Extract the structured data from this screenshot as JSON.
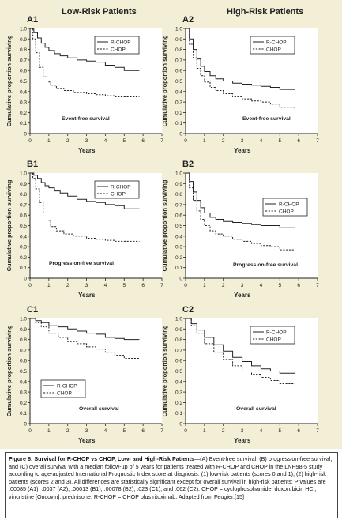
{
  "column_headers": [
    "Low-Risk Patients",
    "High-Risk Patients"
  ],
  "caption": {
    "title": "Figure 6: Survival for R-CHOP vs CHOP, Low- and High-Risk Patients",
    "text": "—(A) Event-free survival, (B) progression-free survival, and (C) overall survival with a median follow-up of 5 years for patients treated with R-CHOP and CHOP in the LNH98-5 study according to age-adjusted International Prognostic Index score at diagnosis: (1) low-risk patients (scores 0 and 1); (2) high-risk patients (scores 2 and 3). All differences are statistically significant except for overall survival in high-risk patients: P values are .00085 (A1), .0037 (A2), .00013 (B1), .00078 (B2), .023 (C1), and .062 (C2). CHOP = cyclophosphamide, doxorubicin HCl, vincristine [Oncovin], prednisone; R-CHOP = CHOP plus rituximab. Adapted from Feugier.[15]"
  },
  "colors": {
    "panel_bg": "#f2efd6",
    "plot_bg": "#ffffff",
    "line": "#222222"
  },
  "chart_data": [
    {
      "id": "A1",
      "type": "line",
      "panel_label": "A1",
      "annotation": "Event-free survival",
      "xlabel": "Years",
      "ylabel": "Cumulative proportion surviving",
      "xlim": [
        0,
        7
      ],
      "ylim": [
        0,
        1
      ],
      "xticks": [
        "0",
        "1",
        "2",
        "3",
        "4",
        "5",
        "6",
        "7"
      ],
      "yticks": [
        "0",
        "0.1",
        "0.2",
        "0.3",
        "0.4",
        "0.5",
        "0.6",
        "0.7",
        "0.8",
        "0.9",
        "1.0"
      ],
      "legend_position": "top-right",
      "series": [
        {
          "name": "R-CHOP",
          "style": "solid",
          "x": [
            0,
            0.2,
            0.4,
            0.6,
            0.8,
            1,
            1.3,
            1.6,
            2,
            2.5,
            3,
            3.5,
            4,
            4.5,
            5,
            5.8
          ],
          "y": [
            1,
            0.96,
            0.91,
            0.86,
            0.82,
            0.79,
            0.76,
            0.74,
            0.72,
            0.7,
            0.69,
            0.68,
            0.65,
            0.63,
            0.6,
            0.6
          ]
        },
        {
          "name": "CHOP",
          "style": "dashed",
          "x": [
            0,
            0.15,
            0.3,
            0.5,
            0.7,
            0.9,
            1.1,
            1.4,
            1.8,
            2.3,
            3,
            3.5,
            4,
            4.5,
            5,
            5.8
          ],
          "y": [
            1,
            0.9,
            0.77,
            0.63,
            0.54,
            0.49,
            0.46,
            0.43,
            0.41,
            0.39,
            0.38,
            0.37,
            0.36,
            0.35,
            0.35,
            0.35
          ]
        }
      ]
    },
    {
      "id": "A2",
      "type": "line",
      "panel_label": "A2",
      "annotation": "Event-free survival",
      "xlabel": "Years",
      "ylabel": "Cumulative proportion surviving",
      "xlim": [
        0,
        7
      ],
      "ylim": [
        0,
        1
      ],
      "xticks": [
        "0",
        "1",
        "2",
        "3",
        "4",
        "5",
        "6",
        "7"
      ],
      "yticks": [
        "0",
        "0.1",
        "0.2",
        "0.3",
        "0.4",
        "0.5",
        "0.6",
        "0.7",
        "0.8",
        "0.9",
        "1.0"
      ],
      "legend_position": "top-right",
      "series": [
        {
          "name": "R-CHOP",
          "style": "solid",
          "x": [
            0,
            0.2,
            0.4,
            0.6,
            0.8,
            1,
            1.3,
            1.6,
            2,
            2.5,
            3,
            3.5,
            4,
            4.5,
            5,
            5.8
          ],
          "y": [
            1,
            0.9,
            0.8,
            0.71,
            0.64,
            0.59,
            0.55,
            0.52,
            0.5,
            0.48,
            0.47,
            0.46,
            0.45,
            0.44,
            0.42,
            0.42
          ]
        },
        {
          "name": "CHOP",
          "style": "dashed",
          "x": [
            0,
            0.2,
            0.4,
            0.6,
            0.8,
            1,
            1.3,
            1.6,
            2,
            2.5,
            3,
            3.5,
            4,
            4.5,
            5,
            5.8
          ],
          "y": [
            1,
            0.85,
            0.72,
            0.62,
            0.55,
            0.49,
            0.44,
            0.41,
            0.38,
            0.35,
            0.33,
            0.31,
            0.3,
            0.28,
            0.25,
            0.25
          ]
        }
      ]
    },
    {
      "id": "B1",
      "type": "line",
      "panel_label": "B1",
      "annotation": "Progression-free survival",
      "xlabel": "Years",
      "ylabel": "Cumulative proportion surviving",
      "xlim": [
        0,
        7
      ],
      "ylim": [
        0,
        1
      ],
      "xticks": [
        "0",
        "1",
        "2",
        "3",
        "4",
        "5",
        "6",
        "7"
      ],
      "yticks": [
        "0",
        "0.1",
        "0.2",
        "0.3",
        "0.4",
        "0.5",
        "0.6",
        "0.7",
        "0.8",
        "0.9",
        "1.0"
      ],
      "legend_position": "top-right",
      "series": [
        {
          "name": "R-CHOP",
          "style": "solid",
          "x": [
            0,
            0.2,
            0.4,
            0.6,
            0.8,
            1,
            1.3,
            1.6,
            2,
            2.5,
            3,
            3.5,
            4,
            4.5,
            5,
            5.8
          ],
          "y": [
            1,
            0.98,
            0.95,
            0.91,
            0.88,
            0.86,
            0.83,
            0.81,
            0.78,
            0.75,
            0.73,
            0.72,
            0.7,
            0.69,
            0.66,
            0.66
          ]
        },
        {
          "name": "CHOP",
          "style": "dashed",
          "x": [
            0,
            0.15,
            0.3,
            0.5,
            0.7,
            0.9,
            1.1,
            1.4,
            1.8,
            2.3,
            3,
            3.5,
            4,
            4.5,
            5,
            5.8
          ],
          "y": [
            1,
            0.95,
            0.85,
            0.72,
            0.62,
            0.55,
            0.49,
            0.45,
            0.42,
            0.4,
            0.38,
            0.37,
            0.36,
            0.35,
            0.35,
            0.35
          ]
        }
      ]
    },
    {
      "id": "B2",
      "type": "line",
      "panel_label": "B2",
      "annotation": "Progression-free survival",
      "xlabel": "Years",
      "ylabel": "Cumulative proportion surviving",
      "xlim": [
        0,
        7
      ],
      "ylim": [
        0,
        1
      ],
      "xticks": [
        "0",
        "1",
        "2",
        "3",
        "4",
        "5",
        "6",
        "7"
      ],
      "yticks": [
        "0",
        "0.1",
        "0.2",
        "0.3",
        "0.4",
        "0.5",
        "0.6",
        "0.7",
        "0.8",
        "0.9",
        "1.0"
      ],
      "legend_position": "right",
      "series": [
        {
          "name": "R-CHOP",
          "style": "solid",
          "x": [
            0,
            0.2,
            0.4,
            0.6,
            0.8,
            1,
            1.3,
            1.6,
            2,
            2.5,
            3,
            3.5,
            4,
            4.5,
            5,
            5.8
          ],
          "y": [
            1,
            0.92,
            0.82,
            0.74,
            0.67,
            0.62,
            0.58,
            0.56,
            0.54,
            0.53,
            0.52,
            0.51,
            0.5,
            0.5,
            0.48,
            0.48
          ]
        },
        {
          "name": "CHOP",
          "style": "dashed",
          "x": [
            0,
            0.2,
            0.4,
            0.6,
            0.8,
            1,
            1.3,
            1.6,
            2,
            2.5,
            3,
            3.5,
            4,
            4.5,
            5,
            5.8
          ],
          "y": [
            1,
            0.86,
            0.74,
            0.64,
            0.56,
            0.5,
            0.45,
            0.42,
            0.4,
            0.37,
            0.35,
            0.33,
            0.31,
            0.3,
            0.27,
            0.27
          ]
        }
      ]
    },
    {
      "id": "C1",
      "type": "line",
      "panel_label": "C1",
      "annotation": "Overall survival",
      "xlabel": "Years",
      "ylabel": "Cumulative proportion surviving",
      "xlim": [
        0,
        7
      ],
      "ylim": [
        0,
        1
      ],
      "xticks": [
        "0",
        "1",
        "2",
        "3",
        "4",
        "5",
        "6",
        "7"
      ],
      "yticks": [
        "0",
        "0.1",
        "0.2",
        "0.3",
        "0.4",
        "0.5",
        "0.6",
        "0.7",
        "0.8",
        "0.9",
        "1.0"
      ],
      "legend_position": "bottom-left",
      "series": [
        {
          "name": "R-CHOP",
          "style": "solid",
          "x": [
            0,
            0.3,
            0.6,
            1,
            1.5,
            2,
            2.5,
            3,
            3.5,
            4,
            4.5,
            5,
            5.8
          ],
          "y": [
            1,
            0.98,
            0.96,
            0.93,
            0.92,
            0.9,
            0.88,
            0.86,
            0.85,
            0.82,
            0.81,
            0.8,
            0.8
          ]
        },
        {
          "name": "CHOP",
          "style": "dashed",
          "x": [
            0,
            0.3,
            0.6,
            1,
            1.5,
            2,
            2.5,
            3,
            3.5,
            4,
            4.5,
            5,
            5.8
          ],
          "y": [
            1,
            0.96,
            0.92,
            0.86,
            0.82,
            0.78,
            0.76,
            0.73,
            0.71,
            0.68,
            0.65,
            0.62,
            0.62
          ]
        }
      ]
    },
    {
      "id": "C2",
      "type": "line",
      "panel_label": "C2",
      "annotation": "Overall survival",
      "xlabel": "Years",
      "ylabel": "Cumulative proportion surviving",
      "xlim": [
        0,
        7
      ],
      "ylim": [
        0,
        1
      ],
      "xticks": [
        "0",
        "1",
        "2",
        "3",
        "4",
        "5",
        "6",
        "7"
      ],
      "yticks": [
        "0",
        "0.1",
        "0.2",
        "0.3",
        "0.4",
        "0.5",
        "0.6",
        "0.7",
        "0.8",
        "0.9",
        "1.0"
      ],
      "legend_position": "top-right",
      "series": [
        {
          "name": "R-CHOP",
          "style": "solid",
          "x": [
            0,
            0.3,
            0.6,
            1,
            1.5,
            2,
            2.5,
            3,
            3.5,
            4,
            4.5,
            5,
            5.8
          ],
          "y": [
            1,
            0.95,
            0.89,
            0.82,
            0.75,
            0.69,
            0.63,
            0.59,
            0.55,
            0.52,
            0.5,
            0.48,
            0.48
          ]
        },
        {
          "name": "CHOP",
          "style": "dashed",
          "x": [
            0,
            0.3,
            0.6,
            1,
            1.5,
            2,
            2.5,
            3,
            3.5,
            4,
            4.5,
            5,
            5.8
          ],
          "y": [
            1,
            0.93,
            0.86,
            0.76,
            0.68,
            0.61,
            0.55,
            0.5,
            0.47,
            0.44,
            0.41,
            0.38,
            0.37
          ]
        }
      ]
    }
  ]
}
